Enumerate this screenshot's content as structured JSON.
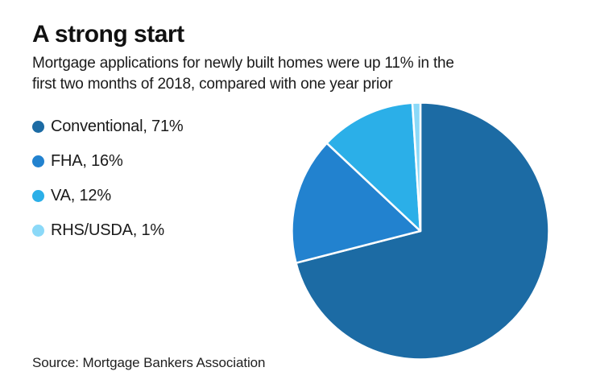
{
  "header": {
    "title": "A strong start",
    "subtitle_line1": "Mortgage applications for newly built homes were up 11% in the",
    "subtitle_line2": "first two months of 2018, compared with one year prior"
  },
  "legend": {
    "items": [
      {
        "label": "Conventional, 71%",
        "color": "#1c6ba4"
      },
      {
        "label": "FHA, 16%",
        "color": "#2282cf"
      },
      {
        "label": "VA, 12%",
        "color": "#2bafe8"
      },
      {
        "label": "RHS/USDA, 1%",
        "color": "#8bd9f8"
      }
    ]
  },
  "source": "Source: Mortgage Bankers Association",
  "chart_data": {
    "type": "pie",
    "title": "A strong start",
    "labels": [
      "Conventional",
      "FHA",
      "VA",
      "RHS/USDA"
    ],
    "values": [
      71,
      16,
      12,
      1
    ],
    "colors": [
      "#1c6ba4",
      "#2282cf",
      "#2bafe8",
      "#8bd9f8"
    ],
    "unit": "%",
    "start_angle_deg": 0,
    "direction": "clockwise",
    "legend_position": "left",
    "slice_border_color": "#ffffff"
  }
}
